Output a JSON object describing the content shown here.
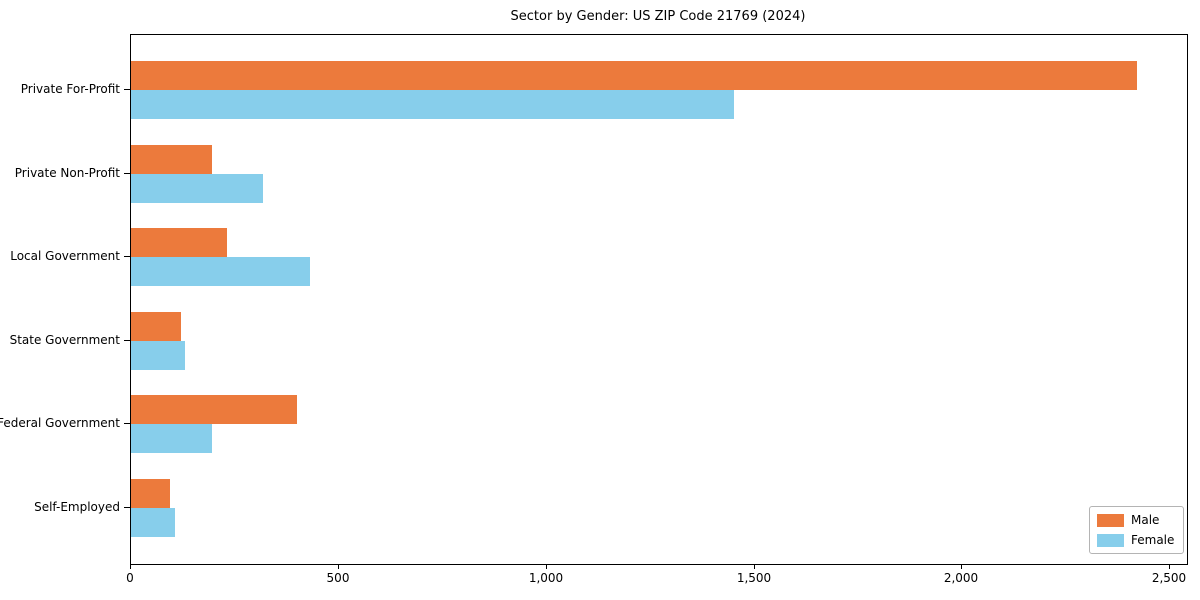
{
  "title": "Sector by Gender: US ZIP Code 21769 (2024)",
  "chart_data": {
    "type": "bar",
    "orientation": "horizontal",
    "title": "Sector by Gender: US ZIP Code 21769 (2024)",
    "categories": [
      "Private For-Profit",
      "Private Non-Profit",
      "Local Government",
      "State Government",
      "Federal Government",
      "Self-Employed"
    ],
    "series": [
      {
        "name": "Male",
        "color": "#ec7a3c",
        "values": [
          2420,
          195,
          230,
          120,
          400,
          95
        ]
      },
      {
        "name": "Female",
        "color": "#87ceeb",
        "values": [
          1450,
          318,
          430,
          130,
          195,
          105
        ]
      }
    ],
    "xlim": [
      0,
      2540
    ],
    "xticks": [
      {
        "value": 0,
        "label": "0"
      },
      {
        "value": 500,
        "label": "500"
      },
      {
        "value": 1000,
        "label": "1,000"
      },
      {
        "value": 1500,
        "label": "1,500"
      },
      {
        "value": 2000,
        "label": "2,000"
      },
      {
        "value": 2500,
        "label": "2,500"
      }
    ],
    "xlabel": "",
    "ylabel": "",
    "grid": false,
    "legend": {
      "position": "lower right",
      "entries": [
        "Male",
        "Female"
      ]
    }
  }
}
